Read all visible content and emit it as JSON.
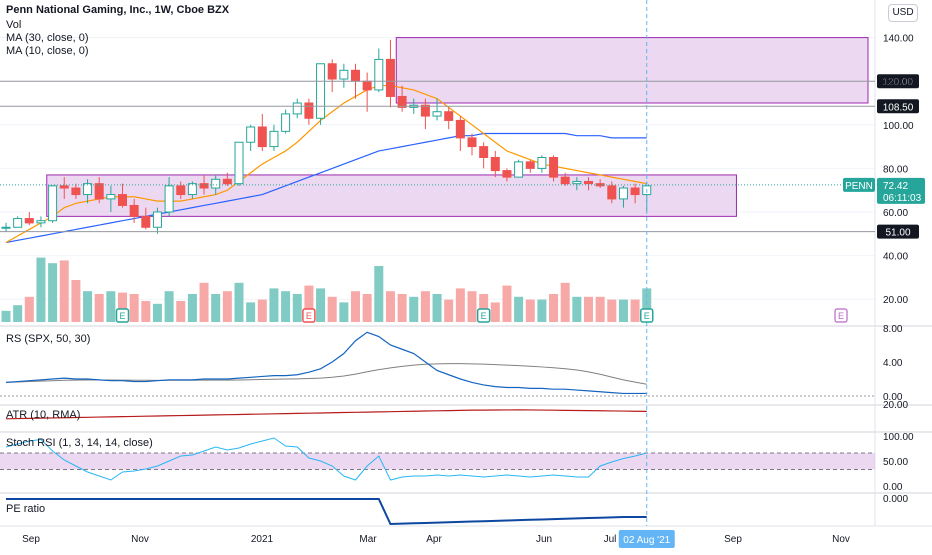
{
  "legend": {
    "title": "Penn National Gaming, Inc., 1W, Cboe BZX",
    "vol": "Vol",
    "ma30": "MA (30, close, 0)",
    "ma10": "MA (10, close, 0)"
  },
  "currency": "USD",
  "price_axis": {
    "ticks": [
      "140.00",
      "120.00",
      "100.00",
      "80.00",
      "60.00",
      "40.00",
      "20.00"
    ],
    "tick_values": [
      140,
      120,
      100,
      80,
      60,
      40,
      20
    ],
    "levels": [
      {
        "label": "120.00",
        "value": 120
      },
      {
        "label": "108.50",
        "value": 108.5
      },
      {
        "label": "51.00",
        "value": 51
      }
    ],
    "ticker": "PENN",
    "last_price": "72.42",
    "countdown": "06:11:03"
  },
  "panes": {
    "rs": {
      "title": "RS (SPX, 50, 30)",
      "ticks": [
        "8.00",
        "4.00",
        "0.00"
      ]
    },
    "atr": {
      "title": "ATR (10, RMA)",
      "ticks": [
        "20.00"
      ]
    },
    "stoch": {
      "title": "Stoch RSI (1, 3, 14, 14, close)",
      "ticks": [
        "100.00",
        "50.00",
        "0.00"
      ]
    },
    "pe": {
      "title": "PE ratio",
      "ticks": [
        "0.000"
      ]
    }
  },
  "time_axis": {
    "labels": [
      "Sep",
      "Nov",
      "2021",
      "Mar",
      "Apr",
      "Jun",
      "Jul",
      "Sep",
      "Nov"
    ],
    "current": "02 Aug '21"
  },
  "event_markers": [
    "E",
    "E",
    "E",
    "E",
    "E"
  ],
  "colors": {
    "up": "#26a69a",
    "down": "#ef5350",
    "up_vol": "#80cbc4",
    "down_vol": "#f7a9a7",
    "ma30": "#2962ff",
    "ma10": "#ff9800",
    "zone": "#e1bee7",
    "zone_border": "#9c27b0",
    "rs_line": "#1565c0",
    "rs_ma": "#808080",
    "atr": "#b71c1c",
    "stoch": "#29b6f6",
    "pe": "#0d47a1"
  },
  "chart_data": {
    "type": "candlestick",
    "title": "Penn National Gaming, Inc., 1W, Cboe BZX",
    "ylim": [
      0,
      150
    ],
    "series": [
      {
        "name": "Price",
        "ohlc": [
          [
            53,
            55,
            51,
            53
          ],
          [
            53,
            58,
            53,
            57
          ],
          [
            57,
            60,
            54,
            55
          ],
          [
            55,
            58,
            53,
            56
          ],
          [
            56,
            72,
            55,
            72
          ],
          [
            72,
            76,
            66,
            71
          ],
          [
            71,
            73,
            66,
            68
          ],
          [
            68,
            75,
            64,
            73
          ],
          [
            73,
            76,
            64,
            66
          ],
          [
            66,
            72,
            60,
            68
          ],
          [
            68,
            73,
            62,
            63
          ],
          [
            63,
            66,
            55,
            58
          ],
          [
            58,
            62,
            52,
            53
          ],
          [
            53,
            62,
            50,
            60
          ],
          [
            60,
            76,
            58,
            72
          ],
          [
            72,
            74,
            66,
            68
          ],
          [
            68,
            74,
            66,
            73
          ],
          [
            73,
            77,
            68,
            71
          ],
          [
            71,
            77,
            68,
            75
          ],
          [
            75,
            78,
            72,
            73
          ],
          [
            73,
            92,
            72,
            92
          ],
          [
            92,
            100,
            88,
            99
          ],
          [
            99,
            105,
            88,
            90
          ],
          [
            90,
            100,
            88,
            97
          ],
          [
            97,
            107,
            96,
            105
          ],
          [
            105,
            112,
            103,
            110
          ],
          [
            110,
            112,
            100,
            103
          ],
          [
            103,
            128,
            100,
            128
          ],
          [
            128,
            130,
            115,
            121
          ],
          [
            121,
            128,
            117,
            125
          ],
          [
            125,
            128,
            112,
            120
          ],
          [
            120,
            124,
            106,
            116
          ],
          [
            116,
            135,
            115,
            130
          ],
          [
            130,
            139,
            108,
            113
          ],
          [
            113,
            118,
            106,
            108
          ],
          [
            108,
            112,
            105,
            109
          ],
          [
            109,
            112,
            98,
            104
          ],
          [
            104,
            112,
            102,
            106
          ],
          [
            106,
            108,
            98,
            102
          ],
          [
            102,
            104,
            88,
            94
          ],
          [
            94,
            96,
            86,
            90
          ],
          [
            90,
            92,
            80,
            85
          ],
          [
            85,
            88,
            76,
            79
          ],
          [
            79,
            80,
            74,
            76
          ],
          [
            76,
            84,
            76,
            83
          ],
          [
            83,
            84,
            78,
            80
          ],
          [
            80,
            86,
            78,
            85
          ],
          [
            85,
            86,
            74,
            76
          ],
          [
            76,
            78,
            72,
            73
          ],
          [
            73,
            76,
            70,
            74
          ],
          [
            74,
            76,
            70,
            73
          ],
          [
            73,
            75,
            71,
            72
          ],
          [
            72,
            74,
            64,
            66
          ],
          [
            66,
            72,
            62,
            71
          ],
          [
            71,
            73,
            64,
            68
          ],
          [
            68,
            74,
            60,
            72
          ]
        ]
      },
      {
        "name": "Vol",
        "values": [
          8,
          12,
          18,
          46,
          42,
          44,
          30,
          22,
          20,
          22,
          21,
          20,
          15,
          13,
          22,
          15,
          20,
          28,
          20,
          22,
          28,
          14,
          16,
          24,
          22,
          20,
          26,
          24,
          18,
          14,
          22,
          20,
          40,
          22,
          20,
          18,
          22,
          20,
          16,
          24,
          22,
          20,
          14,
          26,
          18,
          16,
          16,
          20,
          28,
          18,
          18,
          18,
          16,
          16,
          16,
          24
        ]
      },
      {
        "name": "MA (30, close, 0)",
        "values": [
          46,
          47,
          48,
          49,
          50,
          51,
          52,
          53,
          54,
          55,
          56,
          57,
          58,
          59,
          60,
          61,
          62,
          63,
          64,
          65,
          66,
          67,
          68,
          70,
          72,
          74,
          76,
          78,
          80,
          82,
          84,
          86,
          88,
          89,
          90,
          91,
          92,
          93,
          94,
          95,
          95,
          96,
          96,
          96,
          96,
          96,
          96,
          96,
          96,
          95,
          95,
          95,
          94,
          94,
          94,
          94
        ]
      },
      {
        "name": "MA (10, close, 0)",
        "values": [
          46,
          49,
          52,
          55,
          58,
          62,
          64,
          65,
          66,
          67,
          67,
          67,
          66,
          65,
          65,
          65,
          66,
          67,
          68,
          70,
          74,
          78,
          82,
          85,
          88,
          92,
          97,
          102,
          106,
          110,
          113,
          116,
          118,
          118,
          117,
          116,
          114,
          112,
          108,
          104,
          100,
          96,
          92,
          88,
          86,
          84,
          82,
          81,
          80,
          79,
          78,
          77,
          76,
          75,
          74,
          73
        ]
      },
      {
        "name": "RS (SPX, 50, 30)",
        "values": [
          1.6,
          1.7,
          1.8,
          1.9,
          2.0,
          2.1,
          2.0,
          2.0,
          1.9,
          1.8,
          1.8,
          1.7,
          1.7,
          1.8,
          1.9,
          1.9,
          1.9,
          2.0,
          2.0,
          2.0,
          2.1,
          2.2,
          2.3,
          2.4,
          2.4,
          2.5,
          2.8,
          3.2,
          4.0,
          5.0,
          6.5,
          7.5,
          7.0,
          6.0,
          5.5,
          5.0,
          4.0,
          3.0,
          2.5,
          2.0,
          1.6,
          1.3,
          1.1,
          1.0,
          1.0,
          0.9,
          0.9,
          0.8,
          0.8,
          0.7,
          0.6,
          0.5,
          0.4,
          0.3,
          0.3,
          0.3
        ]
      },
      {
        "name": "Stoch RSI (1, 3, 14, 14, close)",
        "values": [
          78,
          84,
          90,
          93,
          70,
          52,
          40,
          28,
          20,
          12,
          28,
          30,
          34,
          40,
          50,
          60,
          62,
          70,
          78,
          72,
          76,
          84,
          90,
          96,
          80,
          78,
          56,
          50,
          40,
          20,
          12,
          40,
          60,
          12,
          18,
          20,
          20,
          22,
          20,
          22,
          20,
          18,
          20,
          22,
          20,
          18,
          20,
          22,
          20,
          18,
          18,
          40,
          48,
          55,
          60,
          66
        ]
      }
    ],
    "zones": [
      {
        "from": "Mar",
        "y": [
          110,
          140
        ]
      },
      {
        "from": "Sep",
        "y": [
          58,
          77
        ]
      }
    ],
    "ylabel": "",
    "xlabel": ""
  }
}
